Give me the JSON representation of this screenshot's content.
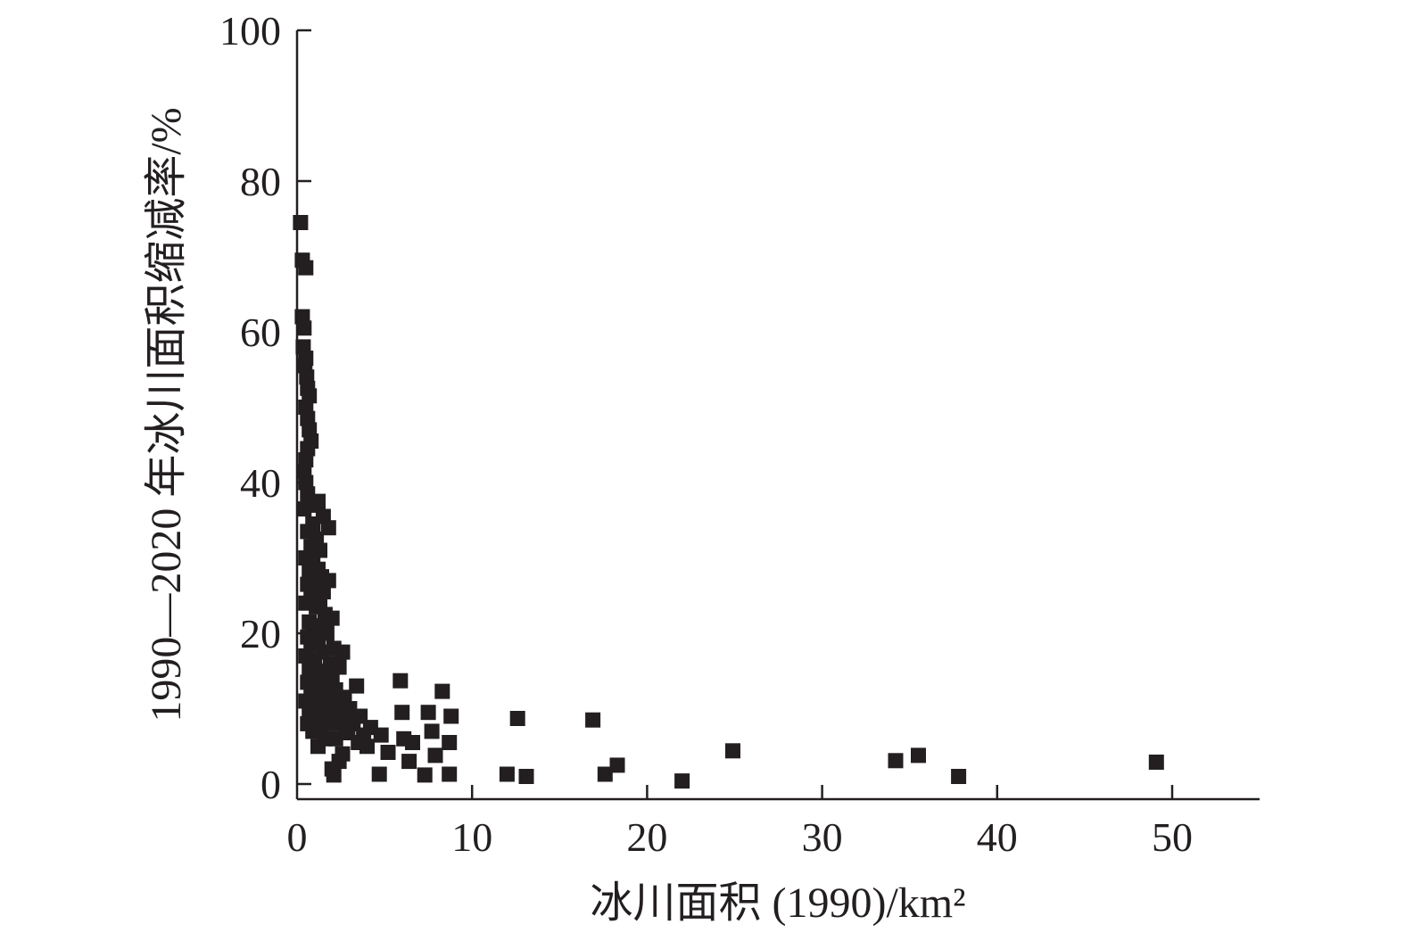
{
  "chart_data": {
    "type": "scatter",
    "xlabel": "冰川面积 (1990)/km²",
    "ylabel": "1990—2020 年冰川面积缩减率/%",
    "xlim": [
      0,
      55
    ],
    "ylim": [
      0,
      100
    ],
    "x_ticks": [
      0,
      10,
      20,
      30,
      40,
      50
    ],
    "y_ticks": [
      0,
      20,
      40,
      60,
      80,
      100
    ],
    "marker": "square",
    "marker_color": "#231f20",
    "grid": false,
    "series": [
      {
        "points": [
          [
            0.2,
            74.5
          ],
          [
            0.3,
            69.5
          ],
          [
            0.5,
            68.5
          ],
          [
            0.3,
            62
          ],
          [
            0.4,
            60.5
          ],
          [
            0.35,
            58
          ],
          [
            0.5,
            56.5
          ],
          [
            0.45,
            55.5
          ],
          [
            0.55,
            54
          ],
          [
            0.6,
            52.5
          ],
          [
            0.7,
            51.5
          ],
          [
            0.5,
            50
          ],
          [
            0.6,
            48.5
          ],
          [
            0.7,
            47
          ],
          [
            0.8,
            45.5
          ],
          [
            0.6,
            44.5
          ],
          [
            0.5,
            43
          ],
          [
            0.4,
            41.5
          ],
          [
            0.5,
            40
          ],
          [
            0.6,
            38.5
          ],
          [
            1.2,
            37.5
          ],
          [
            0.7,
            37
          ],
          [
            0.4,
            36.5
          ],
          [
            1.5,
            35.5
          ],
          [
            1.8,
            34
          ],
          [
            0.9,
            34.5
          ],
          [
            0.6,
            33.5
          ],
          [
            1.1,
            32.5
          ],
          [
            0.8,
            31.5
          ],
          [
            1.3,
            31
          ],
          [
            0.5,
            30
          ],
          [
            0.9,
            29.5
          ],
          [
            1.2,
            28.5
          ],
          [
            0.7,
            28
          ],
          [
            1.4,
            27.5
          ],
          [
            1.8,
            27
          ],
          [
            0.6,
            26.5
          ],
          [
            1.0,
            26
          ],
          [
            1.5,
            25.5
          ],
          [
            0.8,
            25
          ],
          [
            1.3,
            24.5
          ],
          [
            0.5,
            24
          ],
          [
            1.1,
            23.5
          ],
          [
            1.6,
            22.5
          ],
          [
            2.0,
            22
          ],
          [
            0.7,
            21.5
          ],
          [
            1.4,
            21
          ],
          [
            0.9,
            20.5
          ],
          [
            1.7,
            20
          ],
          [
            0.6,
            19.5
          ],
          [
            1.2,
            19
          ],
          [
            0.8,
            18.5
          ],
          [
            2.1,
            18
          ],
          [
            1.5,
            17.5
          ],
          [
            2.6,
            17.5
          ],
          [
            0.5,
            17
          ],
          [
            1.0,
            16.5
          ],
          [
            1.9,
            16
          ],
          [
            2.4,
            15.5
          ],
          [
            0.7,
            15.5
          ],
          [
            1.3,
            15
          ],
          [
            1.6,
            14.5
          ],
          [
            0.9,
            14
          ],
          [
            2.0,
            14
          ],
          [
            0.6,
            13.5
          ],
          [
            1.4,
            13
          ],
          [
            3.4,
            13
          ],
          [
            2.2,
            12.5
          ],
          [
            0.8,
            12.5
          ],
          [
            1.1,
            12
          ],
          [
            1.8,
            11.5
          ],
          [
            2.7,
            11.5
          ],
          [
            0.5,
            11
          ],
          [
            1.5,
            11
          ],
          [
            2.3,
            10.5
          ],
          [
            0.9,
            10.5
          ],
          [
            1.2,
            10
          ],
          [
            3.0,
            10
          ],
          [
            1.7,
            9.5
          ],
          [
            0.7,
            9.5
          ],
          [
            2.5,
            9
          ],
          [
            3.6,
            9
          ],
          [
            1.0,
            8.5
          ],
          [
            1.4,
            8.5
          ],
          [
            2.0,
            8
          ],
          [
            0.6,
            8
          ],
          [
            3.2,
            8
          ],
          [
            4.2,
            7.5
          ],
          [
            1.3,
            7.5
          ],
          [
            2.8,
            7
          ],
          [
            0.9,
            7
          ],
          [
            3.8,
            6.5
          ],
          [
            4.8,
            6.5
          ],
          [
            2.2,
            6
          ],
          [
            1.6,
            6
          ],
          [
            3.5,
            5.5
          ],
          [
            1.2,
            5
          ],
          [
            4.0,
            5
          ],
          [
            2.6,
            4
          ],
          [
            2.4,
            3
          ],
          [
            2.0,
            2
          ],
          [
            2.1,
            1.2
          ],
          [
            2.9,
            6.8
          ],
          [
            5.9,
            13.7
          ],
          [
            8.3,
            12.3
          ],
          [
            6.0,
            9.5
          ],
          [
            7.5,
            9.5
          ],
          [
            8.8,
            9.0
          ],
          [
            7.7,
            7.0
          ],
          [
            6.1,
            6.0
          ],
          [
            6.6,
            5.5
          ],
          [
            8.7,
            5.5
          ],
          [
            5.2,
            4.2
          ],
          [
            7.9,
            3.8
          ],
          [
            6.4,
            3.0
          ],
          [
            4.7,
            1.3
          ],
          [
            7.3,
            1.2
          ],
          [
            8.7,
            1.3
          ],
          [
            12.6,
            8.7
          ],
          [
            12.0,
            1.3
          ],
          [
            13.1,
            1.0
          ],
          [
            16.9,
            8.5
          ],
          [
            17.6,
            1.3
          ],
          [
            18.3,
            2.5
          ],
          [
            22.0,
            0.4
          ],
          [
            24.9,
            4.4
          ],
          [
            34.2,
            3.1
          ],
          [
            35.5,
            3.8
          ],
          [
            37.8,
            1.0
          ],
          [
            49.1,
            2.9
          ]
        ]
      }
    ]
  }
}
